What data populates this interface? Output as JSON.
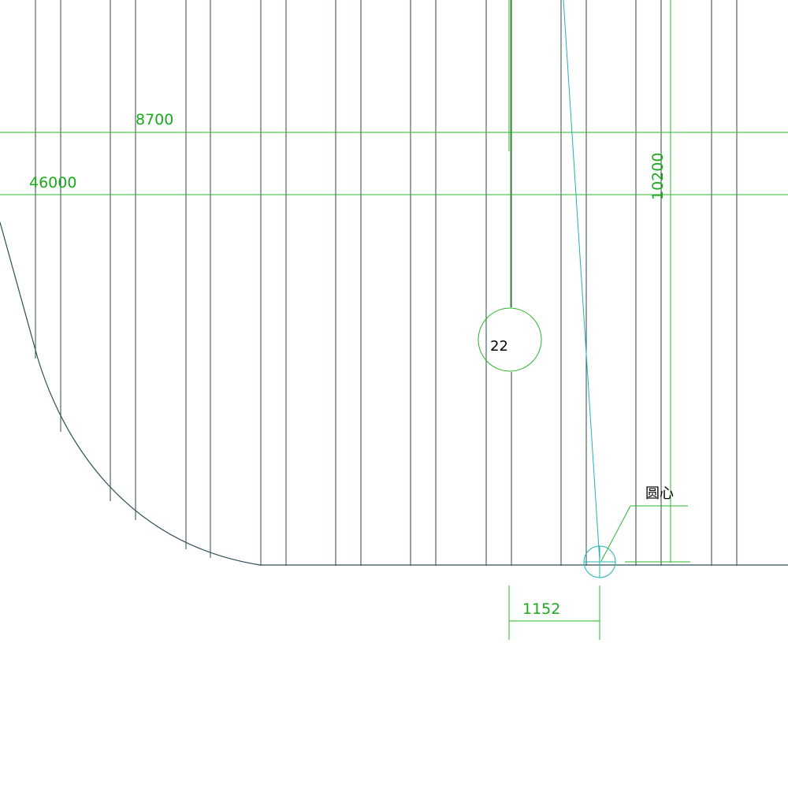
{
  "dimensions": {
    "top_width": "8700",
    "full_width": "46000",
    "height": "10200",
    "offset": "1152"
  },
  "grid_marker": {
    "number": "22"
  },
  "annotation": {
    "center_label": "圆心"
  },
  "colors": {
    "grid": "#2d4a4a",
    "dimension": "#1aaa1a",
    "center_marker": "#1fb3b3",
    "text": "#000000"
  }
}
